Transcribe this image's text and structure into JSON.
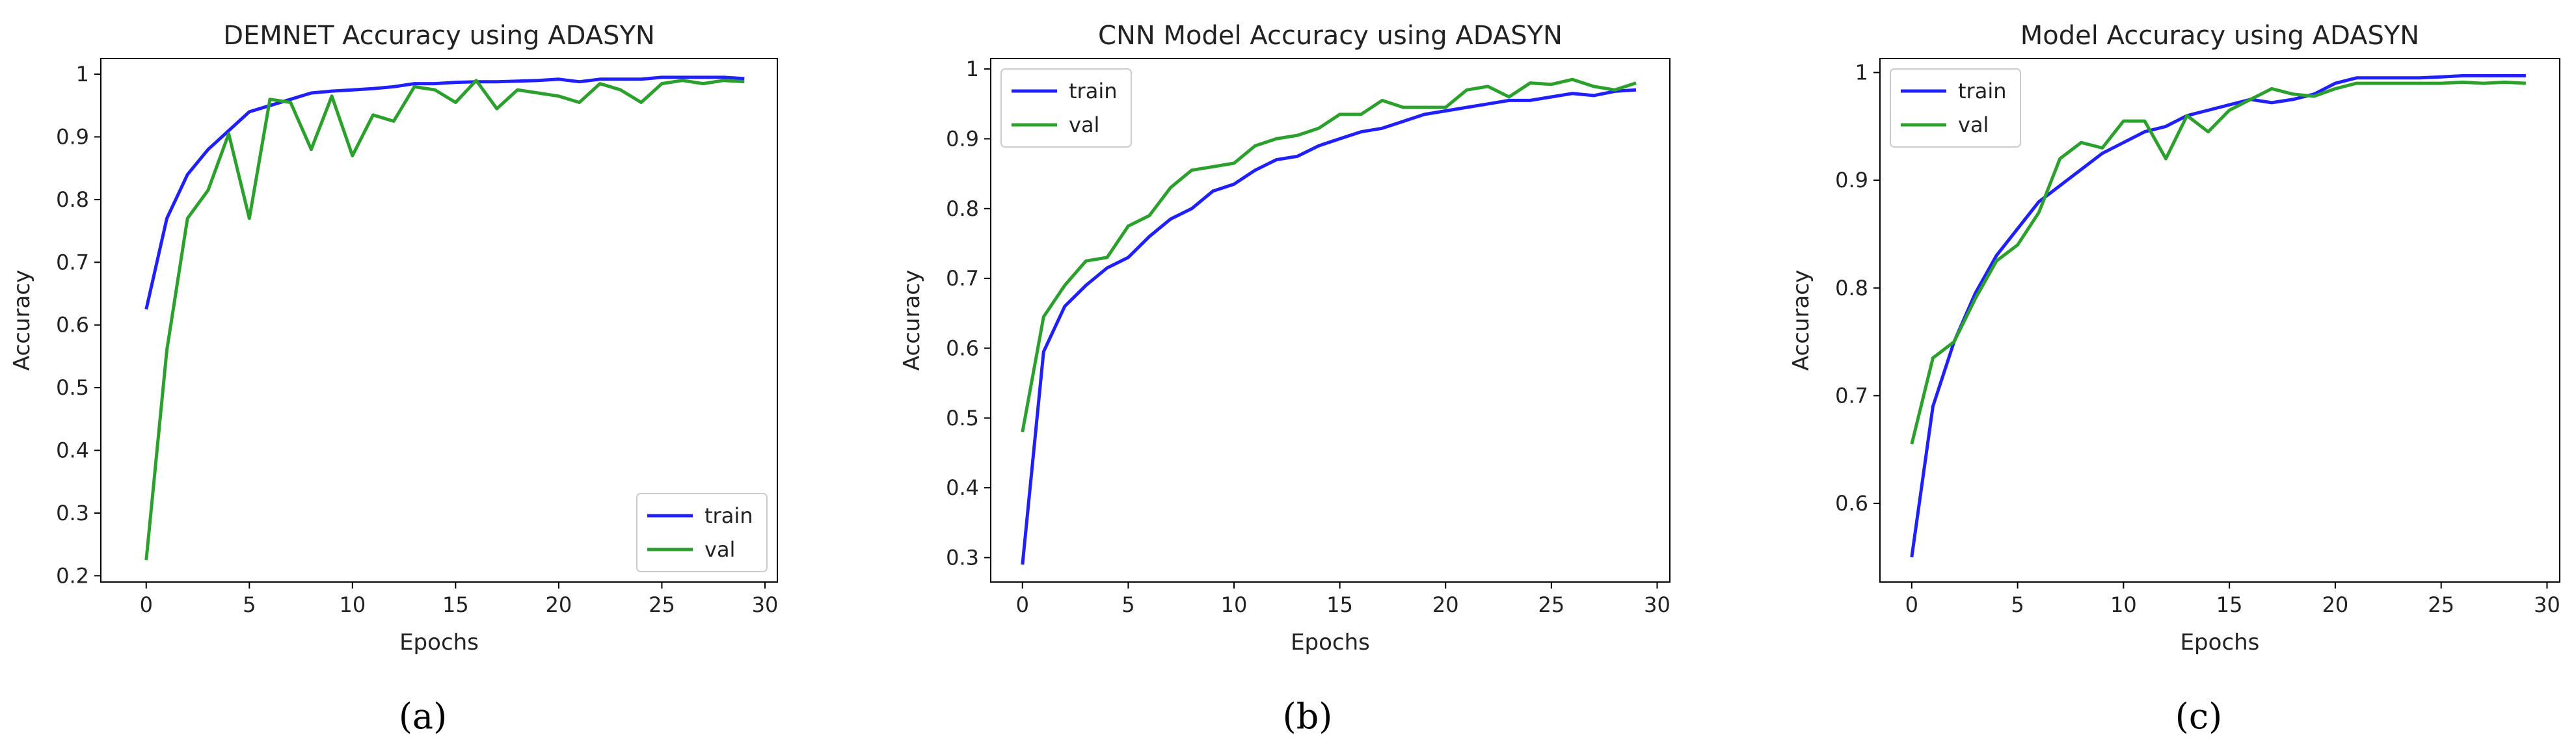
{
  "figure": {
    "panel_labels": [
      "(a)",
      "(b)",
      "(c)"
    ]
  },
  "chart_data": [
    {
      "type": "line",
      "title": "DEMNET Accuracy using ADASYN",
      "xlabel": "Epochs",
      "ylabel": "Accuracy",
      "xlim": [
        -2.2,
        30.6
      ],
      "ylim": [
        0.19,
        1.025
      ],
      "xticks": [
        0,
        5,
        10,
        15,
        20,
        25,
        30
      ],
      "yticks": [
        0.2,
        0.3,
        0.4,
        0.5,
        0.6,
        0.7,
        0.8,
        0.9,
        1.0
      ],
      "grid": false,
      "legend": "lower-right",
      "x": [
        0,
        1,
        2,
        3,
        4,
        5,
        6,
        7,
        8,
        9,
        10,
        11,
        12,
        13,
        14,
        15,
        16,
        17,
        18,
        19,
        20,
        21,
        22,
        23,
        24,
        25,
        26,
        27,
        28,
        29
      ],
      "series": [
        {
          "name": "train",
          "color": "#1f1fff",
          "values": [
            0.625,
            0.77,
            0.84,
            0.88,
            0.91,
            0.94,
            0.95,
            0.96,
            0.97,
            0.973,
            0.975,
            0.977,
            0.98,
            0.985,
            0.985,
            0.987,
            0.988,
            0.988,
            0.989,
            0.99,
            0.992,
            0.988,
            0.992,
            0.992,
            0.992,
            0.995,
            0.995,
            0.995,
            0.995,
            0.993
          ]
        },
        {
          "name": "val",
          "color": "#2ca02c",
          "values": [
            0.225,
            0.56,
            0.77,
            0.815,
            0.905,
            0.77,
            0.96,
            0.955,
            0.88,
            0.965,
            0.87,
            0.935,
            0.925,
            0.98,
            0.975,
            0.955,
            0.99,
            0.945,
            0.975,
            0.97,
            0.965,
            0.955,
            0.985,
            0.975,
            0.955,
            0.985,
            0.99,
            0.985,
            0.99,
            0.988
          ]
        }
      ]
    },
    {
      "type": "line",
      "title": "CNN Model Accuracy using ADASYN",
      "xlabel": "Epochs",
      "ylabel": "Accuracy",
      "xlim": [
        -1.5,
        30.6
      ],
      "ylim": [
        0.265,
        1.015
      ],
      "xticks": [
        0,
        5,
        10,
        15,
        20,
        25,
        30
      ],
      "yticks": [
        0.3,
        0.4,
        0.5,
        0.6,
        0.7,
        0.8,
        0.9,
        1.0
      ],
      "grid": false,
      "legend": "top-left",
      "x": [
        0,
        1,
        2,
        3,
        4,
        5,
        6,
        7,
        8,
        9,
        10,
        11,
        12,
        13,
        14,
        15,
        16,
        17,
        18,
        19,
        20,
        21,
        22,
        23,
        24,
        25,
        26,
        27,
        28,
        29
      ],
      "series": [
        {
          "name": "train",
          "color": "#1f1fff",
          "values": [
            0.29,
            0.595,
            0.66,
            0.69,
            0.715,
            0.73,
            0.76,
            0.785,
            0.8,
            0.825,
            0.835,
            0.855,
            0.87,
            0.875,
            0.89,
            0.9,
            0.91,
            0.915,
            0.925,
            0.935,
            0.94,
            0.945,
            0.95,
            0.955,
            0.955,
            0.96,
            0.965,
            0.962,
            0.968,
            0.97
          ]
        },
        {
          "name": "val",
          "color": "#2ca02c",
          "values": [
            0.48,
            0.645,
            0.69,
            0.725,
            0.73,
            0.775,
            0.79,
            0.83,
            0.855,
            0.86,
            0.865,
            0.89,
            0.9,
            0.905,
            0.915,
            0.935,
            0.935,
            0.955,
            0.945,
            0.945,
            0.945,
            0.97,
            0.975,
            0.96,
            0.98,
            0.978,
            0.985,
            0.975,
            0.97,
            0.98
          ]
        }
      ]
    },
    {
      "type": "line",
      "title": "Model Accuracy using ADASYN",
      "xlabel": "Epochs",
      "ylabel": "Accuracy",
      "xlim": [
        -1.5,
        30.6
      ],
      "ylim": [
        0.527,
        1.013
      ],
      "xticks": [
        0,
        5,
        10,
        15,
        20,
        25,
        30
      ],
      "yticks": [
        0.6,
        0.7,
        0.8,
        0.9,
        1.0
      ],
      "grid": false,
      "legend": "top-left",
      "x": [
        0,
        1,
        2,
        3,
        4,
        5,
        6,
        7,
        8,
        9,
        10,
        11,
        12,
        13,
        14,
        15,
        16,
        17,
        18,
        19,
        20,
        21,
        22,
        23,
        24,
        25,
        26,
        27,
        28,
        29
      ],
      "series": [
        {
          "name": "train",
          "color": "#1f1fff",
          "values": [
            0.55,
            0.69,
            0.75,
            0.795,
            0.83,
            0.855,
            0.88,
            0.895,
            0.91,
            0.925,
            0.935,
            0.945,
            0.95,
            0.96,
            0.965,
            0.97,
            0.975,
            0.972,
            0.975,
            0.98,
            0.99,
            0.995,
            0.995,
            0.995,
            0.995,
            0.996,
            0.997,
            0.997,
            0.997,
            0.997
          ]
        },
        {
          "name": "val",
          "color": "#2ca02c",
          "values": [
            0.655,
            0.735,
            0.75,
            0.79,
            0.825,
            0.84,
            0.87,
            0.92,
            0.935,
            0.93,
            0.955,
            0.955,
            0.92,
            0.96,
            0.945,
            0.965,
            0.975,
            0.985,
            0.98,
            0.978,
            0.985,
            0.99,
            0.99,
            0.99,
            0.99,
            0.99,
            0.991,
            0.99,
            0.991,
            0.99
          ]
        }
      ]
    }
  ]
}
